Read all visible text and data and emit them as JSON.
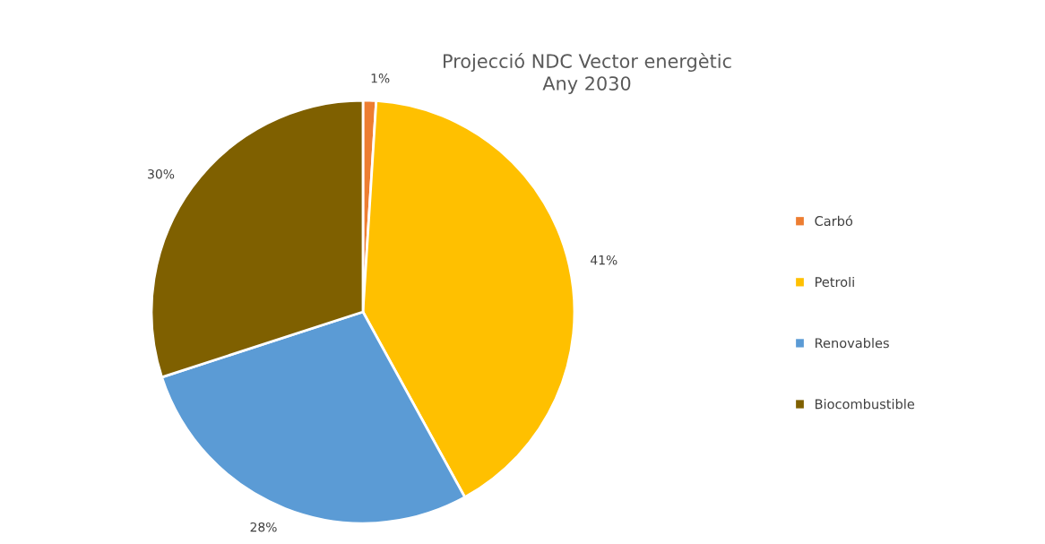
{
  "chart_data": {
    "type": "pie",
    "title": "Projecció NDC Vector energètic\nAny 2030",
    "categories": [
      "Carbó",
      "Petroli",
      "Renovables",
      "Biocombustible"
    ],
    "values": [
      1,
      41,
      28,
      30
    ],
    "colors": [
      "#ed7d31",
      "#ffc000",
      "#5b9bd5",
      "#7f6000"
    ],
    "value_labels": [
      "1%",
      "41%",
      "28%",
      "30%"
    ],
    "legend": "right"
  }
}
